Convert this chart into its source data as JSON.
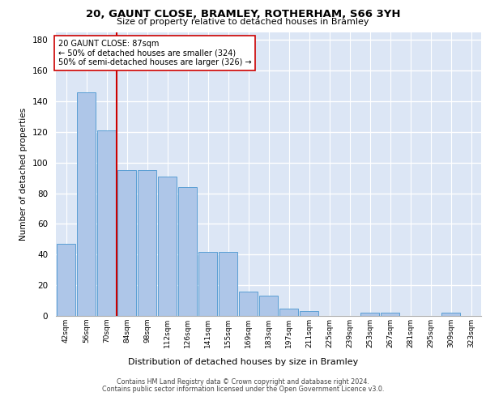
{
  "title1": "20, GAUNT CLOSE, BRAMLEY, ROTHERHAM, S66 3YH",
  "title2": "Size of property relative to detached houses in Bramley",
  "xlabel": "Distribution of detached houses by size in Bramley",
  "ylabel": "Number of detached properties",
  "categories": [
    "42sqm",
    "56sqm",
    "70sqm",
    "84sqm",
    "98sqm",
    "112sqm",
    "126sqm",
    "141sqm",
    "155sqm",
    "169sqm",
    "183sqm",
    "197sqm",
    "211sqm",
    "225sqm",
    "239sqm",
    "253sqm",
    "267sqm",
    "281sqm",
    "295sqm",
    "309sqm",
    "323sqm"
  ],
  "values": [
    47,
    146,
    121,
    95,
    95,
    91,
    84,
    42,
    42,
    16,
    13,
    5,
    3,
    0,
    0,
    2,
    2,
    0,
    0,
    2,
    0
  ],
  "bar_color": "#aec6e8",
  "bar_edge_color": "#5a9fd4",
  "background_color": "#dce6f5",
  "grid_color": "#ffffff",
  "vline_x_index": 3,
  "vline_color": "#cc0000",
  "annotation_line1": "20 GAUNT CLOSE: 87sqm",
  "annotation_line2": "← 50% of detached houses are smaller (324)",
  "annotation_line3": "50% of semi-detached houses are larger (326) →",
  "annotation_box_color": "#ffffff",
  "annotation_box_edge": "#cc0000",
  "footnote1": "Contains HM Land Registry data © Crown copyright and database right 2024.",
  "footnote2": "Contains public sector information licensed under the Open Government Licence v3.0.",
  "ylim": [
    0,
    185
  ],
  "yticks": [
    0,
    20,
    40,
    60,
    80,
    100,
    120,
    140,
    160,
    180
  ]
}
